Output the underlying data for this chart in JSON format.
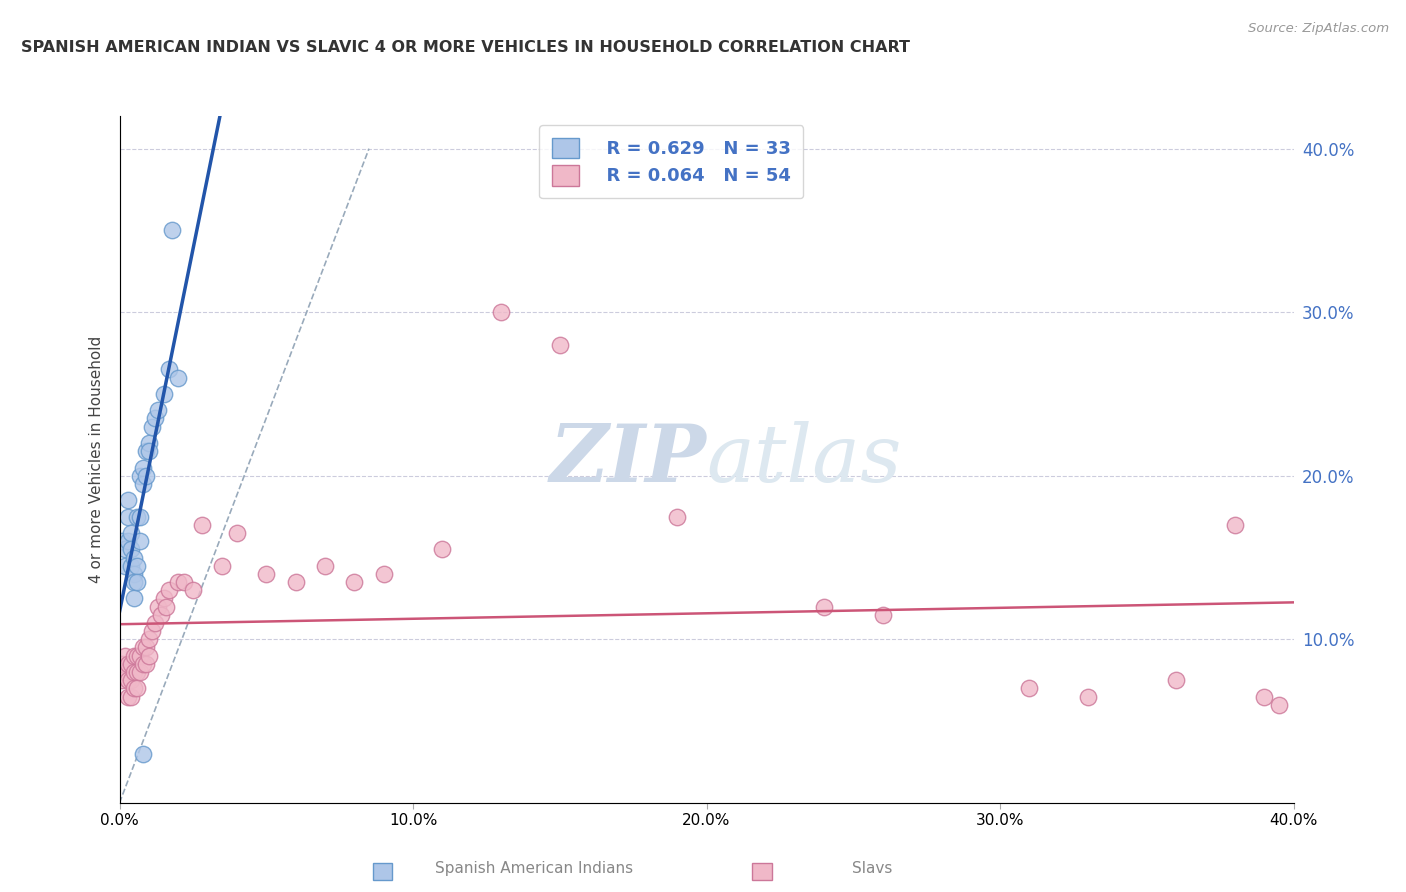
{
  "title": "SPANISH AMERICAN INDIAN VS SLAVIC 4 OR MORE VEHICLES IN HOUSEHOLD CORRELATION CHART",
  "source": "Source: ZipAtlas.com",
  "ylabel": "4 or more Vehicles in Household",
  "xlim": [
    0.0,
    0.4
  ],
  "ylim": [
    0.0,
    0.42
  ],
  "legend_blue_r": "R = 0.629",
  "legend_blue_n": "N = 33",
  "legend_pink_r": "R = 0.064",
  "legend_pink_n": "N = 54",
  "watermark_zip": "ZIP",
  "watermark_atlas": "atlas",
  "blue_scatter_x": [
    0.001,
    0.002,
    0.002,
    0.003,
    0.003,
    0.003,
    0.004,
    0.004,
    0.004,
    0.005,
    0.005,
    0.005,
    0.005,
    0.006,
    0.006,
    0.006,
    0.007,
    0.007,
    0.007,
    0.008,
    0.008,
    0.009,
    0.009,
    0.01,
    0.01,
    0.011,
    0.012,
    0.013,
    0.015,
    0.017,
    0.018,
    0.02,
    0.008
  ],
  "blue_scatter_y": [
    0.16,
    0.155,
    0.145,
    0.185,
    0.175,
    0.16,
    0.165,
    0.155,
    0.145,
    0.15,
    0.14,
    0.135,
    0.125,
    0.175,
    0.145,
    0.135,
    0.2,
    0.175,
    0.16,
    0.205,
    0.195,
    0.215,
    0.2,
    0.22,
    0.215,
    0.23,
    0.235,
    0.24,
    0.25,
    0.265,
    0.35,
    0.26,
    0.03
  ],
  "pink_scatter_x": [
    0.001,
    0.001,
    0.002,
    0.002,
    0.003,
    0.003,
    0.003,
    0.004,
    0.004,
    0.004,
    0.005,
    0.005,
    0.005,
    0.006,
    0.006,
    0.006,
    0.007,
    0.007,
    0.008,
    0.008,
    0.009,
    0.009,
    0.01,
    0.01,
    0.011,
    0.012,
    0.013,
    0.014,
    0.015,
    0.016,
    0.017,
    0.02,
    0.022,
    0.025,
    0.028,
    0.035,
    0.04,
    0.05,
    0.06,
    0.07,
    0.08,
    0.09,
    0.11,
    0.13,
    0.15,
    0.19,
    0.24,
    0.26,
    0.31,
    0.33,
    0.36,
    0.38,
    0.39,
    0.395
  ],
  "pink_scatter_y": [
    0.085,
    0.075,
    0.09,
    0.08,
    0.085,
    0.075,
    0.065,
    0.085,
    0.075,
    0.065,
    0.09,
    0.08,
    0.07,
    0.09,
    0.08,
    0.07,
    0.09,
    0.08,
    0.095,
    0.085,
    0.095,
    0.085,
    0.1,
    0.09,
    0.105,
    0.11,
    0.12,
    0.115,
    0.125,
    0.12,
    0.13,
    0.135,
    0.135,
    0.13,
    0.17,
    0.145,
    0.165,
    0.14,
    0.135,
    0.145,
    0.135,
    0.14,
    0.155,
    0.3,
    0.28,
    0.175,
    0.12,
    0.115,
    0.07,
    0.065,
    0.075,
    0.17,
    0.065,
    0.06
  ],
  "blue_color": "#aec6e8",
  "blue_edge_color": "#6699cc",
  "pink_color": "#f0b8c8",
  "pink_edge_color": "#cc7799",
  "blue_line_color": "#2255aa",
  "pink_line_color": "#cc5577",
  "dashed_line_color": "#99aabb",
  "grid_color": "#ccccdd",
  "background_color": "#ffffff",
  "right_tick_color": "#4472c4",
  "watermark_color": "#ccd8e8"
}
